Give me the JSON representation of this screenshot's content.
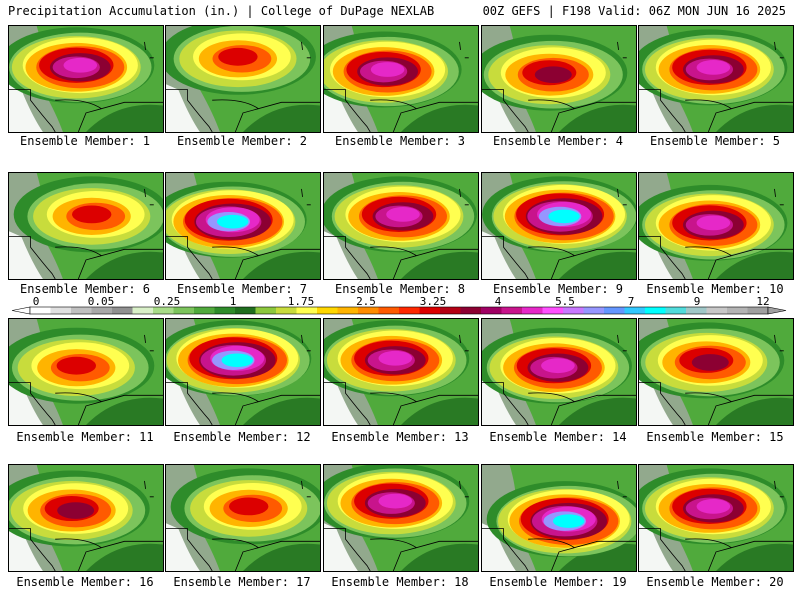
{
  "header": {
    "left": "Precipitation Accumulation (in.) | College of DuPage NEXLAB",
    "right": "00Z GEFS | F198 Valid: 06Z MON JUN 16 2025"
  },
  "members": [
    {
      "label": "Ensemble Member: 1",
      "peak": 5.5,
      "blob": [
        0.45,
        0.38
      ]
    },
    {
      "label": "Ensemble Member: 2",
      "peak": 3.25,
      "blob": [
        0.48,
        0.3
      ]
    },
    {
      "label": "Ensemble Member: 3",
      "peak": 5.5,
      "blob": [
        0.4,
        0.42
      ]
    },
    {
      "label": "Ensemble Member: 4",
      "peak": 4,
      "blob": [
        0.45,
        0.45
      ]
    },
    {
      "label": "Ensemble Member: 5",
      "peak": 5.5,
      "blob": [
        0.47,
        0.4
      ]
    },
    {
      "label": "Ensemble Member: 6",
      "peak": 3.25,
      "blob": [
        0.55,
        0.4
      ]
    },
    {
      "label": "Ensemble Member: 7",
      "peak": 7,
      "blob": [
        0.42,
        0.45
      ]
    },
    {
      "label": "Ensemble Member: 8",
      "peak": 5.5,
      "blob": [
        0.5,
        0.4
      ]
    },
    {
      "label": "Ensemble Member: 9",
      "peak": 7,
      "blob": [
        0.52,
        0.4
      ]
    },
    {
      "label": "Ensemble Member: 10",
      "peak": 5.5,
      "blob": [
        0.47,
        0.48
      ]
    },
    {
      "label": "Ensemble Member: 11",
      "peak": 3.25,
      "blob": [
        0.45,
        0.45
      ]
    },
    {
      "label": "Ensemble Member: 12",
      "peak": 7,
      "blob": [
        0.45,
        0.38
      ]
    },
    {
      "label": "Ensemble Member: 13",
      "peak": 5.5,
      "blob": [
        0.45,
        0.38
      ]
    },
    {
      "label": "Ensemble Member: 14",
      "peak": 5.5,
      "blob": [
        0.48,
        0.45
      ]
    },
    {
      "label": "Ensemble Member: 15",
      "peak": 4,
      "blob": [
        0.45,
        0.4
      ]
    },
    {
      "label": "Ensemble Member: 16",
      "peak": 4,
      "blob": [
        0.42,
        0.42
      ]
    },
    {
      "label": "Ensemble Member: 17",
      "peak": 3.25,
      "blob": [
        0.55,
        0.4
      ]
    },
    {
      "label": "Ensemble Member: 18",
      "peak": 5.5,
      "blob": [
        0.45,
        0.35
      ]
    },
    {
      "label": "Ensemble Member: 19",
      "peak": 7,
      "blob": [
        0.55,
        0.52
      ]
    },
    {
      "label": "Ensemble Member: 20",
      "peak": 5.5,
      "blob": [
        0.47,
        0.4
      ]
    }
  ],
  "colorbar": {
    "labels": [
      "0",
      "0.05",
      "0.25",
      "1",
      "1.75",
      "2.5",
      "3.25",
      "4",
      "5.5",
      "7",
      "9",
      "12"
    ],
    "colors": [
      "#ffffff",
      "#e0e0e0",
      "#c0c0c0",
      "#a8a8a8",
      "#909090",
      "#d9f0c8",
      "#a8dc88",
      "#7cc45c",
      "#50aa3c",
      "#2e8c2a",
      "#1f6e1e",
      "#8cc83c",
      "#c8dc3c",
      "#ffff50",
      "#ffd700",
      "#ffb400",
      "#ff8c00",
      "#ff5a00",
      "#ff2800",
      "#dc0000",
      "#b40014",
      "#8c0032",
      "#a00064",
      "#c8148c",
      "#e628c8",
      "#ff50ff",
      "#c878ff",
      "#9696ff",
      "#6496ff",
      "#32c8ff",
      "#00ffff",
      "#50dcdc",
      "#a0c8c8",
      "#c8c8c8",
      "#b4b4b4",
      "#a0a0a0"
    ]
  },
  "legend_scale": {
    "levels_in": [
      0,
      0.05,
      0.25,
      1,
      1.75,
      2.5,
      3.25,
      4,
      5.5,
      7,
      9,
      12
    ]
  }
}
